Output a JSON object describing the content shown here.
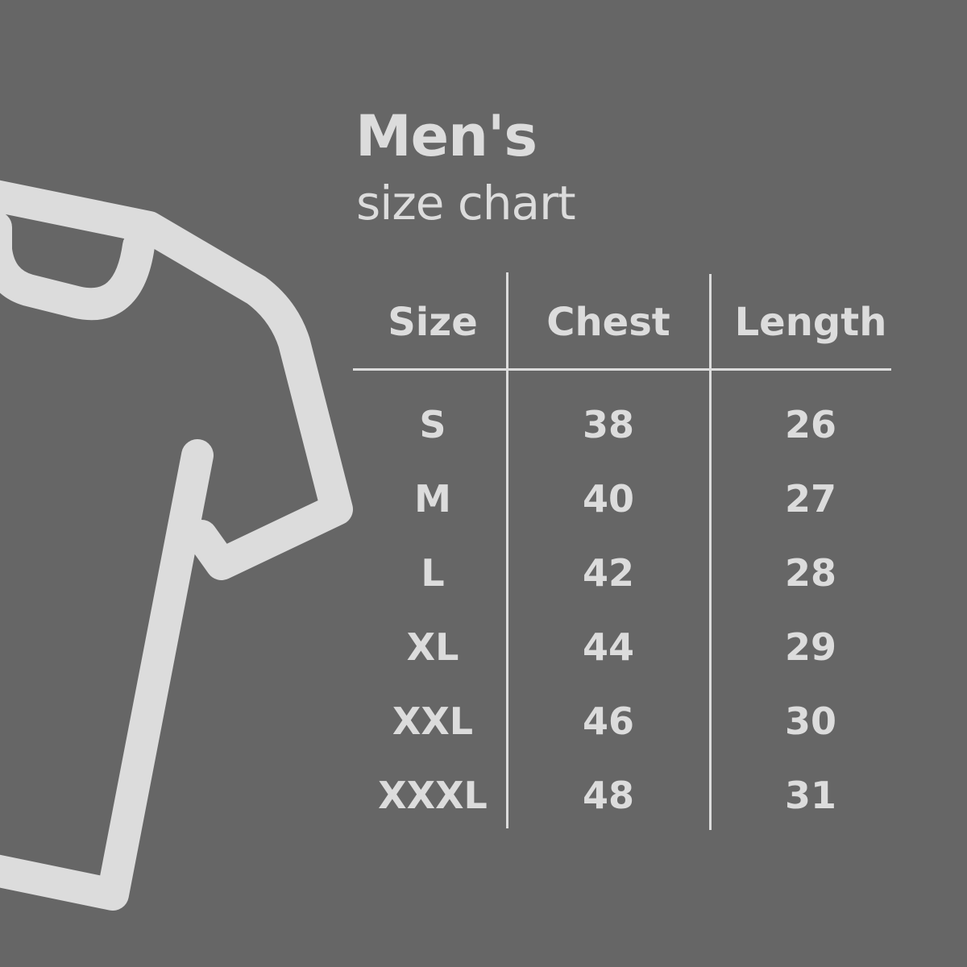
{
  "title": "Men's",
  "subtitle": "size chart",
  "colors": {
    "background": "#666666",
    "foreground": "#dcdcdc"
  },
  "icon": "t-shirt-icon",
  "table": {
    "headers": [
      "Size",
      "Chest",
      "Length"
    ],
    "rows": [
      [
        "S",
        "38",
        "26"
      ],
      [
        "M",
        "40",
        "27"
      ],
      [
        "L",
        "42",
        "28"
      ],
      [
        "XL",
        "44",
        "29"
      ],
      [
        "XXL",
        "46",
        "30"
      ],
      [
        "XXXL",
        "48",
        "31"
      ]
    ]
  }
}
